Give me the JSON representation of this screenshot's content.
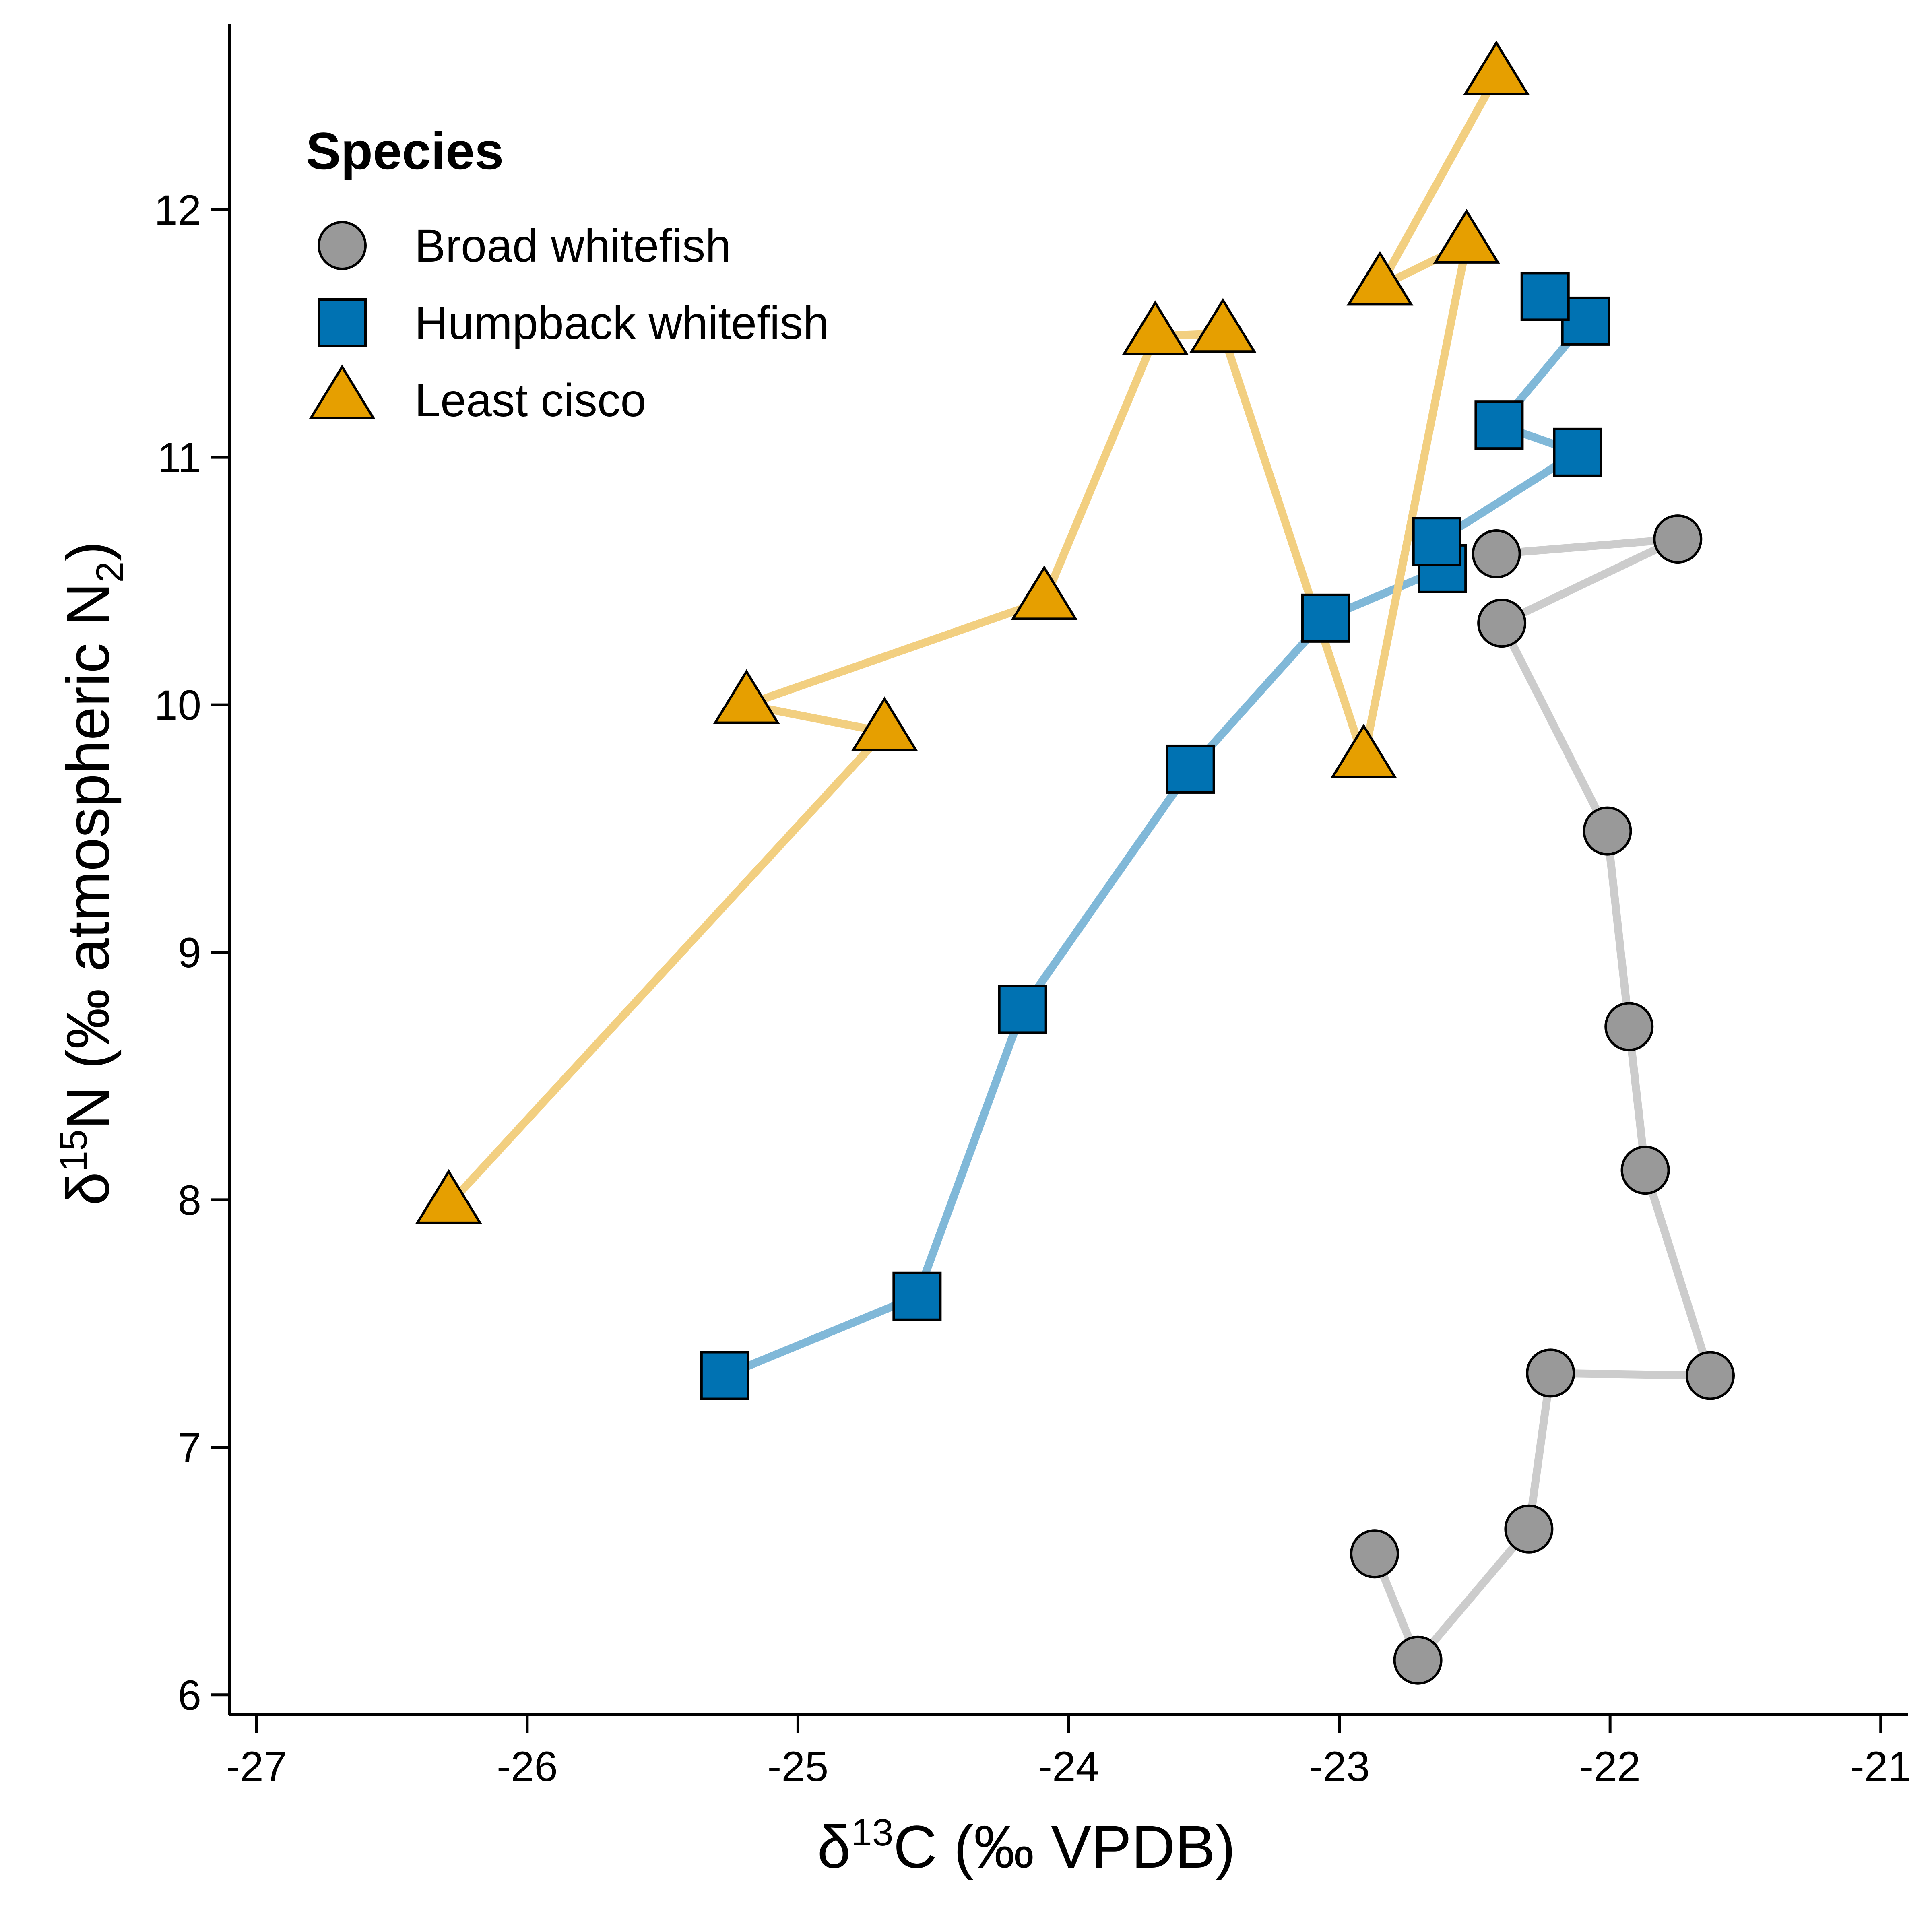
{
  "chart_data": {
    "type": "line",
    "xlabel": {
      "delta": "δ",
      "sup": "13",
      "rest": "C (‰  VPDB)"
    },
    "ylabel": {
      "delta": "δ",
      "sup": "15",
      "main": "N (‰  atmospheric  N",
      "sub": "2",
      "close": ")"
    },
    "xlim": [
      -27.1,
      -20.9
    ],
    "ylim": [
      5.92,
      12.75
    ],
    "xticks": [
      {
        "value": -27,
        "label": "-27"
      },
      {
        "value": -26,
        "label": "-26"
      },
      {
        "value": -25,
        "label": "-25"
      },
      {
        "value": -24,
        "label": "-24"
      },
      {
        "value": -23,
        "label": "-23"
      },
      {
        "value": -22,
        "label": "-22"
      },
      {
        "value": -21,
        "label": "-21"
      }
    ],
    "yticks": [
      {
        "value": 6,
        "label": "6"
      },
      {
        "value": 7,
        "label": "7"
      },
      {
        "value": 8,
        "label": "8"
      },
      {
        "value": 9,
        "label": "9"
      },
      {
        "value": 10,
        "label": "10"
      },
      {
        "value": 11,
        "label": "11"
      },
      {
        "value": 12,
        "label": "12"
      }
    ],
    "legend": {
      "title": "Species",
      "position": "top-left"
    },
    "series": [
      {
        "name": "Broad whitefish",
        "marker": "circle",
        "fill": "#999999",
        "line_color": "#cccccc",
        "x": [
          -22.87,
          -22.71,
          -22.3,
          -22.22,
          -21.63,
          -21.87,
          -21.93,
          -22.01,
          -22.4,
          -21.75,
          -22.42
        ],
        "y": [
          6.57,
          6.14,
          6.67,
          7.3,
          7.29,
          8.12,
          8.7,
          9.49,
          10.33,
          10.67,
          10.61
        ]
      },
      {
        "name": "Humpback whitefish",
        "marker": "square",
        "fill": "#0072b2",
        "line_color": "#80b8d8",
        "x": [
          -25.27,
          -24.56,
          -24.17,
          -23.55,
          -23.05,
          -22.62,
          -22.64,
          -22.12,
          -22.41,
          -22.09,
          -22.24
        ],
        "y": [
          7.29,
          7.61,
          8.77,
          9.74,
          10.35,
          10.55,
          10.66,
          11.02,
          11.13,
          11.55,
          11.65
        ]
      },
      {
        "name": "Least cisco",
        "marker": "triangle",
        "fill": "#e69f00",
        "line_color": "#f2cf80",
        "x": [
          -26.29,
          -24.68,
          -25.19,
          -24.09,
          -23.68,
          -23.43,
          -22.91,
          -22.53,
          -22.85,
          -22.42
        ],
        "y": [
          7.98,
          9.89,
          10.0,
          10.42,
          11.49,
          11.5,
          9.78,
          11.86,
          11.69,
          12.54
        ]
      }
    ]
  }
}
